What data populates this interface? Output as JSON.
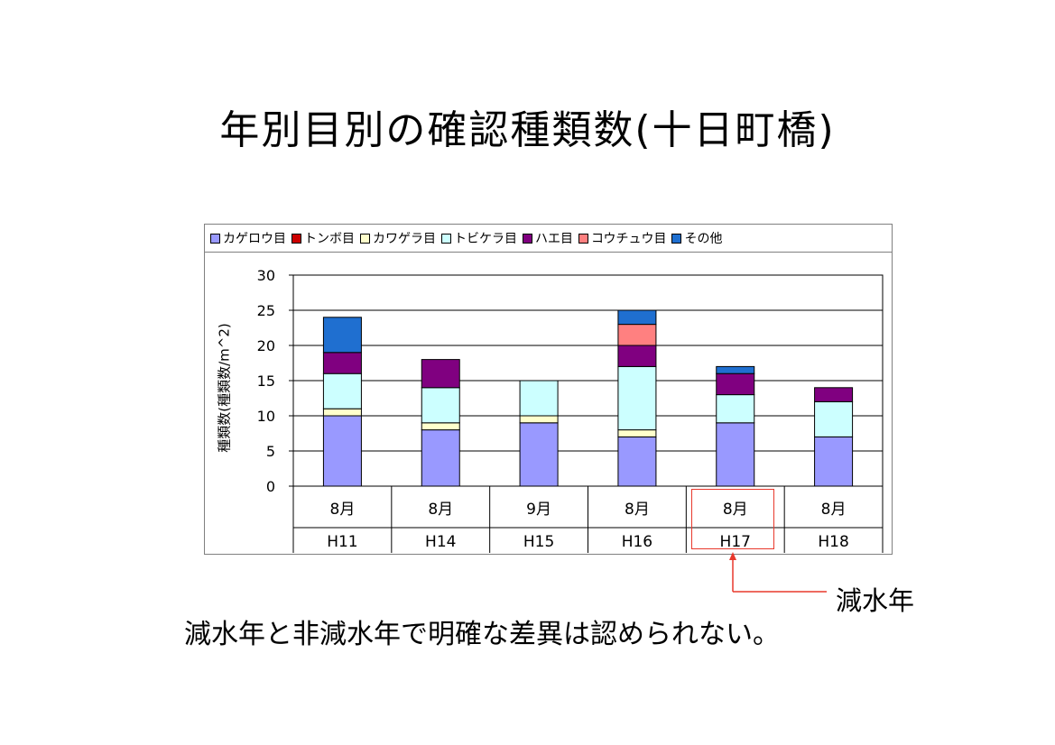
{
  "title": "年別目別の確認種類数(十日町橋)",
  "chart_data": {
    "type": "bar",
    "stacked": true,
    "ylabel": "種類数(種類数/m^2)",
    "ylim": [
      0,
      30
    ],
    "yticks": [
      0,
      5,
      10,
      15,
      20,
      25,
      30
    ],
    "grid": true,
    "legend_position": "top",
    "categories": [
      {
        "month": "8月",
        "year": "H11"
      },
      {
        "month": "8月",
        "year": "H14"
      },
      {
        "month": "9月",
        "year": "H15"
      },
      {
        "month": "8月",
        "year": "H16"
      },
      {
        "month": "8月",
        "year": "H17"
      },
      {
        "month": "8月",
        "year": "H18"
      }
    ],
    "series": [
      {
        "name": "カゲロウ目",
        "color": "#9999ff",
        "values": [
          10,
          8,
          9,
          7,
          9,
          7
        ]
      },
      {
        "name": "トンボ目",
        "color": "#cc0000",
        "values": [
          0,
          0,
          0,
          0,
          0,
          0
        ]
      },
      {
        "name": "カワゲラ目",
        "color": "#ffffcc",
        "values": [
          1,
          1,
          1,
          1,
          0,
          0
        ]
      },
      {
        "name": "トビケラ目",
        "color": "#ccffff",
        "values": [
          5,
          5,
          5,
          9,
          4,
          5
        ]
      },
      {
        "name": "ハエ目",
        "color": "#800080",
        "values": [
          3,
          4,
          0,
          3,
          3,
          2
        ]
      },
      {
        "name": "コウチュウ目",
        "color": "#ff8080",
        "values": [
          0,
          0,
          0,
          3,
          0,
          0
        ]
      },
      {
        "name": "その他",
        "color": "#1f6fd0",
        "values": [
          5,
          0,
          0,
          2,
          1,
          0
        ]
      }
    ]
  },
  "annotation": {
    "label": "減水年",
    "color": "#e8382c"
  },
  "conclusion": "減水年と非減水年で明確な差異は認められない。"
}
